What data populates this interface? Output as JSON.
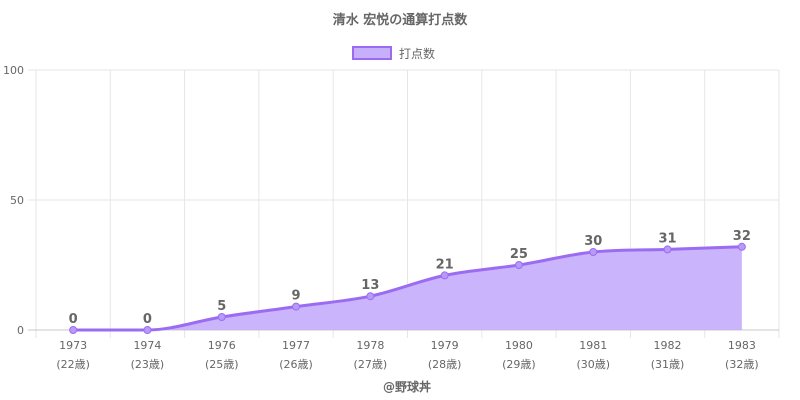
{
  "chart_data": {
    "type": "area",
    "title": "清水 宏悦の通算打点数",
    "categories": [
      "1973",
      "1974",
      "1976",
      "1977",
      "1978",
      "1979",
      "1980",
      "1981",
      "1982",
      "1983"
    ],
    "category_sublabels": [
      "(22歳)",
      "(23歳)",
      "(25歳)",
      "(26歳)",
      "(27歳)",
      "(28歳)",
      "(29歳)",
      "(30歳)",
      "(31歳)",
      "(32歳)"
    ],
    "series": [
      {
        "name": "打点数",
        "values": [
          0,
          0,
          5,
          9,
          13,
          21,
          25,
          30,
          31,
          32
        ]
      }
    ],
    "ylim": [
      0,
      100
    ],
    "yticks": [
      0,
      50,
      100
    ],
    "grid": true,
    "legend": "top-center",
    "colors": {
      "line": "#9b6cf2",
      "fill": "#c7b0fb",
      "point": "#b79af7"
    }
  },
  "footer": "@野球丼"
}
